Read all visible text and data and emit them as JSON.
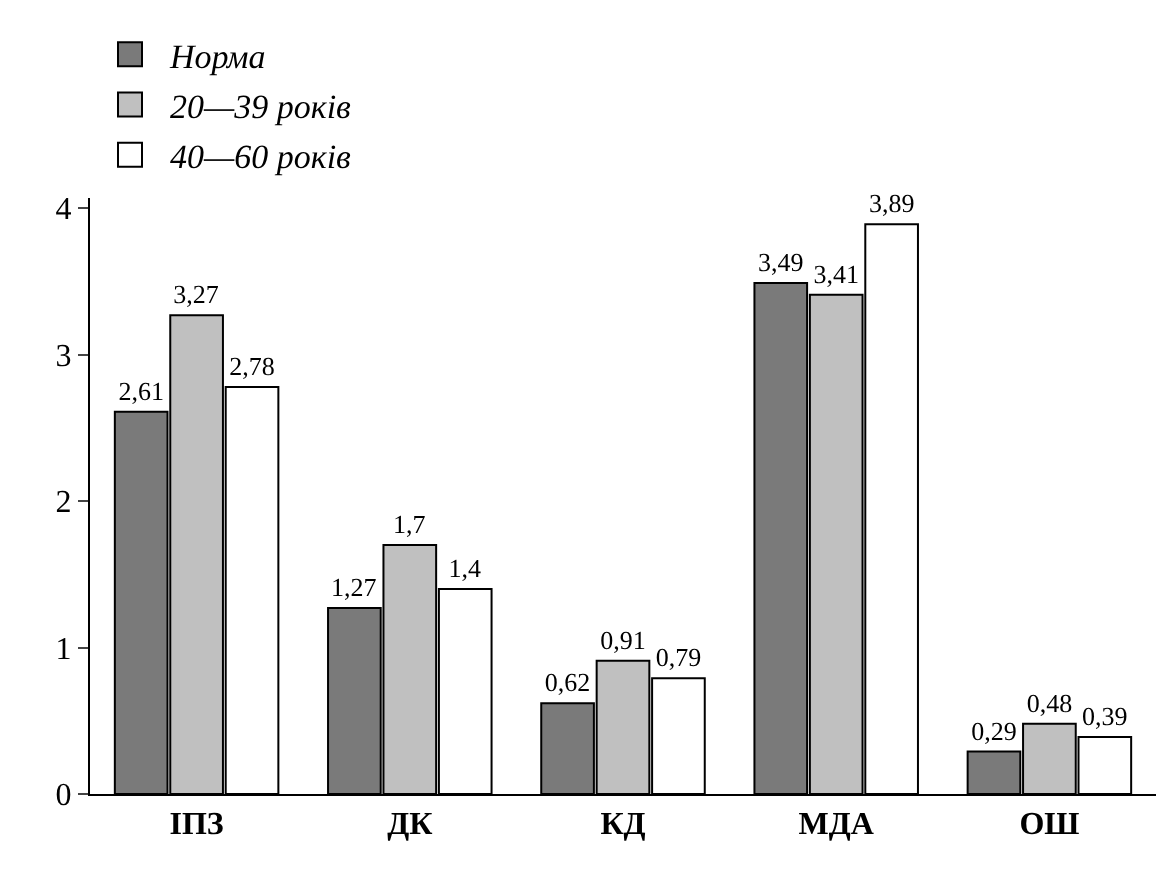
{
  "chart_data": {
    "type": "bar",
    "categories": [
      "ІПЗ",
      "ДК",
      "КД",
      "МДА",
      "ОШ"
    ],
    "series": [
      {
        "name": "Норма",
        "color": "#7a7a7a",
        "values": [
          2.61,
          1.27,
          0.62,
          3.49,
          0.29
        ],
        "value_labels": [
          "2,61",
          "1,27",
          "0,62",
          "3,49",
          "0,29"
        ]
      },
      {
        "name": "20—39 років",
        "color": "#c0c0c0",
        "values": [
          3.27,
          1.7,
          0.91,
          3.41,
          0.48
        ],
        "value_labels": [
          "3,27",
          "1,7",
          "0,91",
          "3,41",
          "0,48"
        ]
      },
      {
        "name": "40—60 років",
        "color": "#ffffff",
        "values": [
          2.78,
          1.4,
          0.79,
          3.89,
          0.39
        ],
        "value_labels": [
          "2,78",
          "1,4",
          "0,79",
          "3,89",
          "0,39"
        ]
      }
    ],
    "ylim": [
      0,
      4.07
    ],
    "yticks": [
      0,
      1,
      2,
      3,
      4
    ],
    "grid": false,
    "legend": "top left"
  }
}
